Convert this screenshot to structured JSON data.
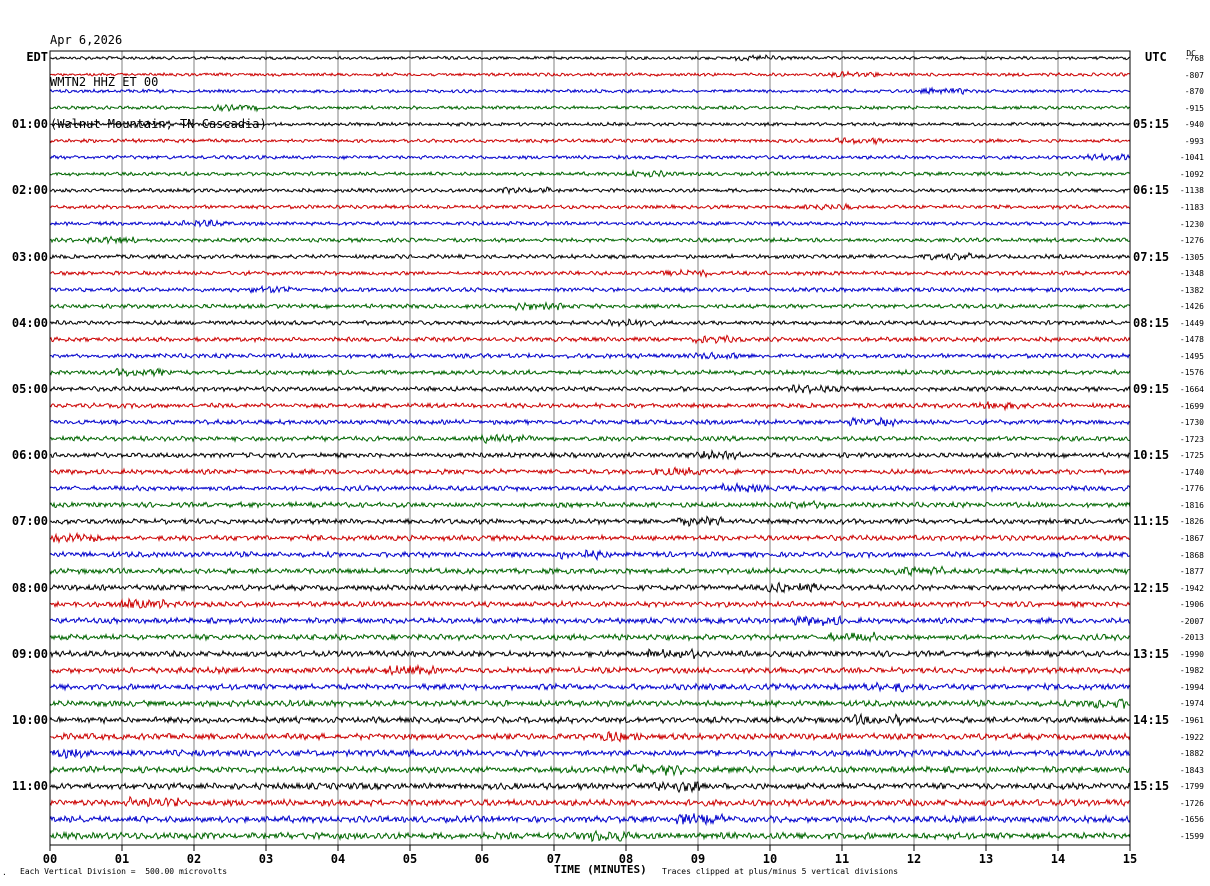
{
  "header": {
    "date": "Apr 6,2026",
    "station": "WMTN2 HHZ ET 00",
    "location": "(Walnut Mountain, TN Cascadia)"
  },
  "left_tz": "EDT",
  "right_tz": "UTC",
  "dc_header": "DC",
  "footer": {
    "scale": "Each Vertical Division =  500.00 microvolts",
    "xlabel": "TIME (MINUTES)",
    "clip": "Traces clipped at plus/minus 5 vertical divisions"
  },
  "colors": {
    "trace_cycle": [
      "#000000",
      "#cc0000",
      "#0000cc",
      "#006600"
    ],
    "grid": "#808080"
  },
  "chart_data": {
    "type": "line",
    "title": "Apr 6,2026 WMTN2 HHZ ET 00 (Walnut Mountain, TN Cascadia)",
    "xlabel": "TIME (MINUTES)",
    "xlim": [
      0,
      15
    ],
    "x_ticks": [
      "00",
      "01",
      "02",
      "03",
      "04",
      "05",
      "06",
      "07",
      "08",
      "09",
      "10",
      "11",
      "12",
      "13",
      "14",
      "15"
    ],
    "rows_per_hour": 4,
    "minutes_per_row": 15,
    "row_count": 48,
    "left_hour_labels": [
      "01:00",
      "02:00",
      "03:00",
      "04:00",
      "05:00",
      "06:00",
      "07:00",
      "08:00",
      "09:00",
      "10:00",
      "11:00"
    ],
    "right_hour_labels": [
      "05:15",
      "06:15",
      "07:15",
      "08:15",
      "09:15",
      "10:15",
      "11:15",
      "12:15",
      "13:15",
      "14:15",
      "15:15"
    ],
    "dc_offsets": [
      "-768",
      "-807",
      "-870",
      "-915",
      "-940",
      "-993",
      "-1041",
      "-1092",
      "-1138",
      "-1183",
      "-1230",
      "-1276",
      "-1305",
      "-1348",
      "-1382",
      "-1426",
      "-1449",
      "-1478",
      "-1495",
      "-1576",
      "-1664",
      "-1699",
      "-1730",
      "-1723",
      "-1725",
      "-1740",
      "-1776",
      "-1816",
      "-1826",
      "-1867",
      "-1868",
      "-1877",
      "-1942",
      "-1906",
      "-2007",
      "-2013",
      "-1990",
      "-1982",
      "-1994",
      "-1974",
      "-1961",
      "-1922",
      "-1882",
      "-1843",
      "-1799",
      "-1726",
      "-1656",
      "-1599"
    ]
  }
}
